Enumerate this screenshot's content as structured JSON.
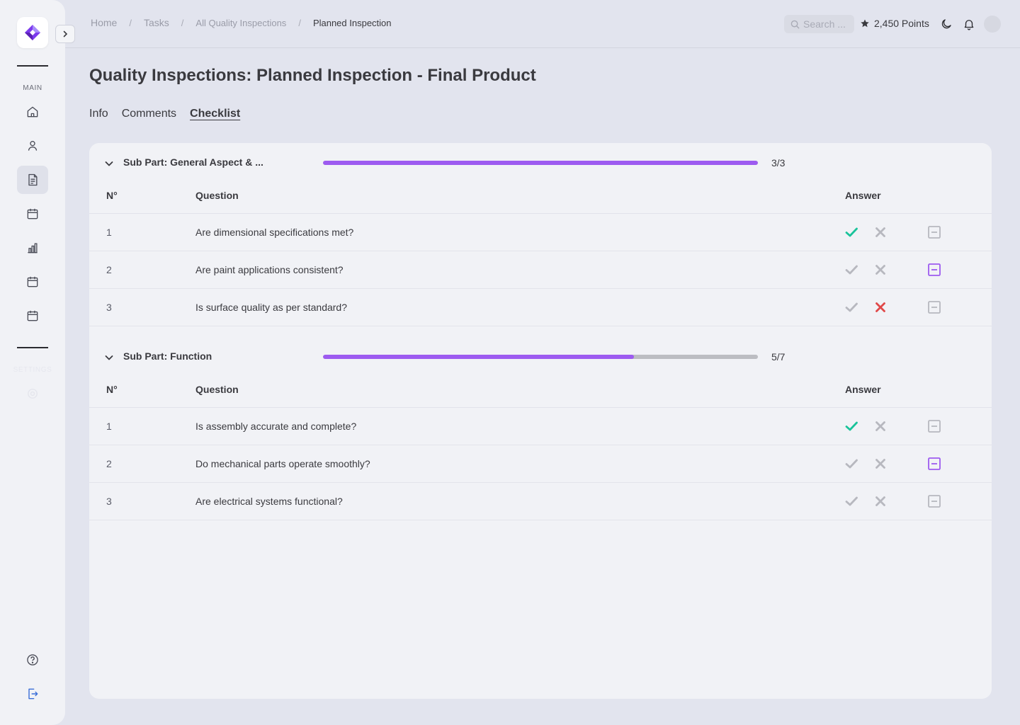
{
  "sidebar": {
    "main_label": "MAIN",
    "settings_label": "SETTINGS",
    "nav_items": [
      {
        "icon": "home-icon"
      },
      {
        "icon": "user-icon"
      },
      {
        "icon": "document-icon",
        "active": true
      },
      {
        "icon": "calendar-icon"
      },
      {
        "icon": "bar-chart-icon"
      },
      {
        "icon": "calendar-icon"
      },
      {
        "icon": "calendar-icon"
      }
    ],
    "bottom_items": [
      {
        "icon": "help-icon"
      },
      {
        "icon": "logout-icon"
      }
    ]
  },
  "breadcrumb": {
    "home": "Home",
    "tasks": "Tasks",
    "all": "All Quality Inspections",
    "current": "Planned Inspection",
    "separator": "/"
  },
  "header": {
    "search_placeholder": "Search ...",
    "points": "2,450 Points"
  },
  "page": {
    "title": "Quality Inspections: Planned Inspection - Final Product",
    "tabs": [
      "Info",
      "Comments",
      "Checklist"
    ],
    "active_tab": "Checklist"
  },
  "colors": {
    "accent": "#9d5bf0",
    "yes": "#19c39a",
    "no": "#e04848",
    "muted": "#b7b8bf"
  },
  "sections": [
    {
      "title": "Sub Part: General Aspect & ...",
      "progress_text": "3/3",
      "progress_fraction": 1.0,
      "col_num": "N°",
      "col_question": "Question",
      "col_answer": "Answer",
      "rows": [
        {
          "num": "1",
          "question": "Are dimensional specifications met?",
          "answer": "yes"
        },
        {
          "num": "2",
          "question": "Are paint applications consistent?",
          "answer": "na"
        },
        {
          "num": "3",
          "question": "Is surface quality as per standard?",
          "answer": "no"
        }
      ]
    },
    {
      "title": "Sub Part: Function",
      "progress_text": "5/7",
      "progress_fraction": 0.7143,
      "col_num": "N°",
      "col_question": "Question",
      "col_answer": "Answer",
      "rows": [
        {
          "num": "1",
          "question": "Is assembly accurate and complete?",
          "answer": "yes"
        },
        {
          "num": "2",
          "question": "Do mechanical parts operate smoothly?",
          "answer": "na"
        },
        {
          "num": "3",
          "question": "Are electrical systems functional?",
          "answer": "none"
        }
      ]
    }
  ]
}
